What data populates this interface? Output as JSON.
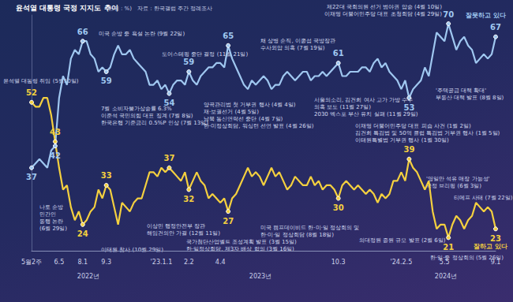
{
  "chart_data": {
    "type": "line",
    "title": "윤석열 대통령 국정 지지도 추이",
    "subtitle": "(단위 : %)",
    "source": "자료 : 한국갤럽 주간 정례조사",
    "categories": [
      "5월2주",
      null,
      null,
      null,
      null,
      null,
      null,
      "6.5",
      null,
      null,
      null,
      null,
      null,
      "8.1",
      null,
      null,
      null,
      null,
      null,
      "9.3",
      null,
      null,
      null,
      null,
      null,
      null,
      null,
      null,
      null,
      null,
      null,
      null,
      null,
      "'23.1.1",
      null,
      null,
      null,
      null,
      null,
      null,
      "2.2",
      null,
      null,
      null,
      null,
      null,
      null,
      null,
      "4.4",
      null,
      null,
      null,
      null,
      null,
      null,
      null,
      null,
      null,
      null,
      null,
      null,
      null,
      null,
      null,
      null,
      null,
      null,
      null,
      null,
      null,
      null,
      null,
      null,
      null,
      null,
      null,
      null,
      null,
      "10.3",
      null,
      null,
      null,
      null,
      null,
      null,
      null,
      null,
      null,
      null,
      null,
      null,
      null,
      null,
      null,
      "'24.2.5",
      null,
      null,
      null,
      null,
      null,
      null,
      null,
      null,
      null,
      null,
      "5.5",
      null,
      null,
      null,
      null,
      null,
      null,
      null,
      null,
      null,
      null,
      null,
      null,
      "9.1"
    ],
    "x_period_labels": [
      "2022년",
      "2023년",
      "2024년"
    ],
    "series": [
      {
        "name": "잘못하고 있다",
        "color": "#9fc7f0",
        "values": [
          37,
          38,
          39,
          38,
          37,
          41,
          42,
          53,
          58,
          56,
          62,
          64,
          63,
          66,
          66,
          63,
          62,
          59,
          60,
          59,
          60,
          63,
          65,
          63,
          63,
          64,
          62,
          61,
          60,
          59,
          56,
          56,
          57,
          55,
          56,
          54,
          56,
          57,
          57,
          56,
          59,
          57,
          56,
          58,
          59,
          60,
          60,
          61,
          61,
          60,
          65,
          62,
          60,
          58,
          56,
          55,
          57,
          56,
          57,
          58,
          57,
          55,
          56,
          56,
          58,
          59,
          58,
          57,
          58,
          59,
          59,
          57,
          58,
          58,
          59,
          58,
          59,
          60,
          61,
          58,
          58,
          59,
          59,
          59,
          60,
          60,
          59,
          61,
          62,
          60,
          61,
          59,
          58,
          57,
          55,
          57,
          53,
          55,
          56,
          57,
          60,
          58,
          63,
          68,
          67,
          66,
          70,
          67,
          64,
          66,
          67,
          65,
          64,
          61,
          62,
          63,
          62,
          63,
          67
        ],
        "value_labels": [
          "37",
          null,
          null,
          null,
          null,
          null,
          "42",
          null,
          null,
          null,
          null,
          null,
          null,
          "66",
          null,
          null,
          null,
          null,
          null,
          "59",
          null,
          null,
          null,
          null,
          null,
          null,
          null,
          null,
          null,
          null,
          null,
          null,
          null,
          null,
          null,
          "54",
          null,
          null,
          null,
          null,
          "59",
          null,
          null,
          null,
          null,
          null,
          null,
          null,
          null,
          null,
          "65",
          null,
          null,
          null,
          null,
          null,
          null,
          null,
          null,
          null,
          null,
          null,
          null,
          null,
          null,
          null,
          null,
          null,
          null,
          null,
          null,
          null,
          null,
          null,
          null,
          null,
          null,
          null,
          "61",
          null,
          null,
          null,
          null,
          null,
          null,
          null,
          null,
          null,
          null,
          null,
          null,
          null,
          null,
          null,
          null,
          null,
          "53",
          null,
          null,
          null,
          null,
          null,
          null,
          null,
          null,
          null,
          "70",
          null,
          null,
          null,
          null,
          null,
          null,
          null,
          null,
          null,
          null,
          null,
          "67"
        ]
      },
      {
        "name": "잘하고 있다",
        "color": "#f4d03f",
        "values": [
          52,
          51,
          51,
          53,
          53,
          49,
          43,
          37,
          32,
          33,
          28,
          25,
          27,
          24,
          25,
          27,
          28,
          32,
          30,
          33,
          32,
          28,
          24,
          29,
          28,
          27,
          29,
          30,
          30,
          33,
          36,
          36,
          35,
          37,
          36,
          37,
          36,
          35,
          34,
          36,
          32,
          34,
          36,
          34,
          33,
          30,
          31,
          30,
          29,
          30,
          27,
          30,
          31,
          33,
          35,
          37,
          35,
          36,
          35,
          33,
          35,
          37,
          35,
          36,
          34,
          32,
          33,
          35,
          34,
          33,
          33,
          35,
          33,
          34,
          32,
          33,
          33,
          32,
          30,
          33,
          34,
          33,
          32,
          33,
          32,
          31,
          32,
          31,
          29,
          31,
          30,
          31,
          34,
          34,
          36,
          34,
          39,
          37,
          36,
          34,
          32,
          34,
          27,
          23,
          24,
          24,
          21,
          24,
          26,
          25,
          23,
          25,
          26,
          29,
          28,
          27,
          28,
          27,
          23
        ],
        "value_labels": [
          "52",
          null,
          null,
          null,
          null,
          null,
          "43",
          null,
          null,
          null,
          null,
          null,
          null,
          "24",
          null,
          null,
          null,
          null,
          null,
          "33",
          null,
          null,
          null,
          null,
          null,
          null,
          null,
          null,
          null,
          null,
          null,
          null,
          null,
          null,
          null,
          "37",
          null,
          null,
          null,
          null,
          "32",
          null,
          null,
          null,
          null,
          null,
          null,
          null,
          null,
          null,
          "27",
          null,
          null,
          null,
          null,
          null,
          null,
          null,
          null,
          null,
          null,
          null,
          null,
          null,
          null,
          null,
          null,
          null,
          null,
          null,
          null,
          null,
          null,
          null,
          null,
          null,
          null,
          null,
          "30",
          null,
          null,
          null,
          null,
          null,
          null,
          null,
          null,
          null,
          null,
          null,
          null,
          null,
          null,
          null,
          null,
          null,
          "39",
          null,
          null,
          null,
          null,
          null,
          null,
          null,
          null,
          null,
          "21",
          null,
          null,
          null,
          null,
          null,
          null,
          null,
          null,
          null,
          null,
          null,
          "23"
        ]
      }
    ],
    "ylim": [
      18,
      72
    ],
    "grid": false,
    "tick_labels": "x",
    "data_labels": true,
    "annotations": [
      "윤석열 대통령 취임 (5월10일)",
      "나토 순방\n민간인\n동행 논란\n(6월 29일)",
      "7월 소비자물가상승률 6.3%\n이준석 국민의힘 대표 징계 (7월 8일)\n한국은행 기준금리 0.5%P 인상 (7월 13일)",
      "미국 순방 중 욕설 논란 (9월 22일)",
      "도어스테핑 중단 결정 (11월 21일)",
      "이태원 참사 (10월 29일)",
      "이상민 행정안전부 장관\n해임건의안 가결 (12월 11일)",
      "국가첨단산업벨트 조성계획 발표 (3월 15일)\n한·일정상회담, 제3자 배상 합의 (3월 16일)",
      "양곡관리법 첫 거부권 행사 (4월 4일)\n재·보궐선거 (4월 5일)\n남북 통신연락선 중단 (4월 7일)\n한·미정상회담, 워싱턴 선언 발표 (4월 26일)",
      "채 상병 순직, 이종섭 국방장관\n수사외압 의혹 (7월 19일)",
      "서울의소리, 김건희 여사 고가 가방 수수\n의혹 보도 (11월 27일)\n2030 엑스포 부산 유치 실패 (11월 29일)",
      "미국 캠프데이비드 한·미·일 정상회의 및\n한·미·일 정상회담 (8월 18일)",
      "이재명 더불어민주당 대표 피습 사건 (1월 2일)\n김건희 특검법 및 50억 클럽 특검법 거부권 행사 (1월 5일)\n이태원특별법 거부권 행사 (1월 30일)",
      "제22대 국회의원 선거 범야권 압승 (4월 10일)\n이재명 더불어민주당 대표 초청회담 (4월 29일)",
      "'주택공급 대책 확대'\n부동산 대책 발표 (8월 8일)",
      "의대정원 증원 규모 발표 (2월 6일)",
      "'영일만 석유 매장 가능성'\n국정 브리핑 (6월 3일)",
      "티메프 사태 (7월 22일)",
      "한·일·중 정상회의 (5월 26일)"
    ]
  }
}
